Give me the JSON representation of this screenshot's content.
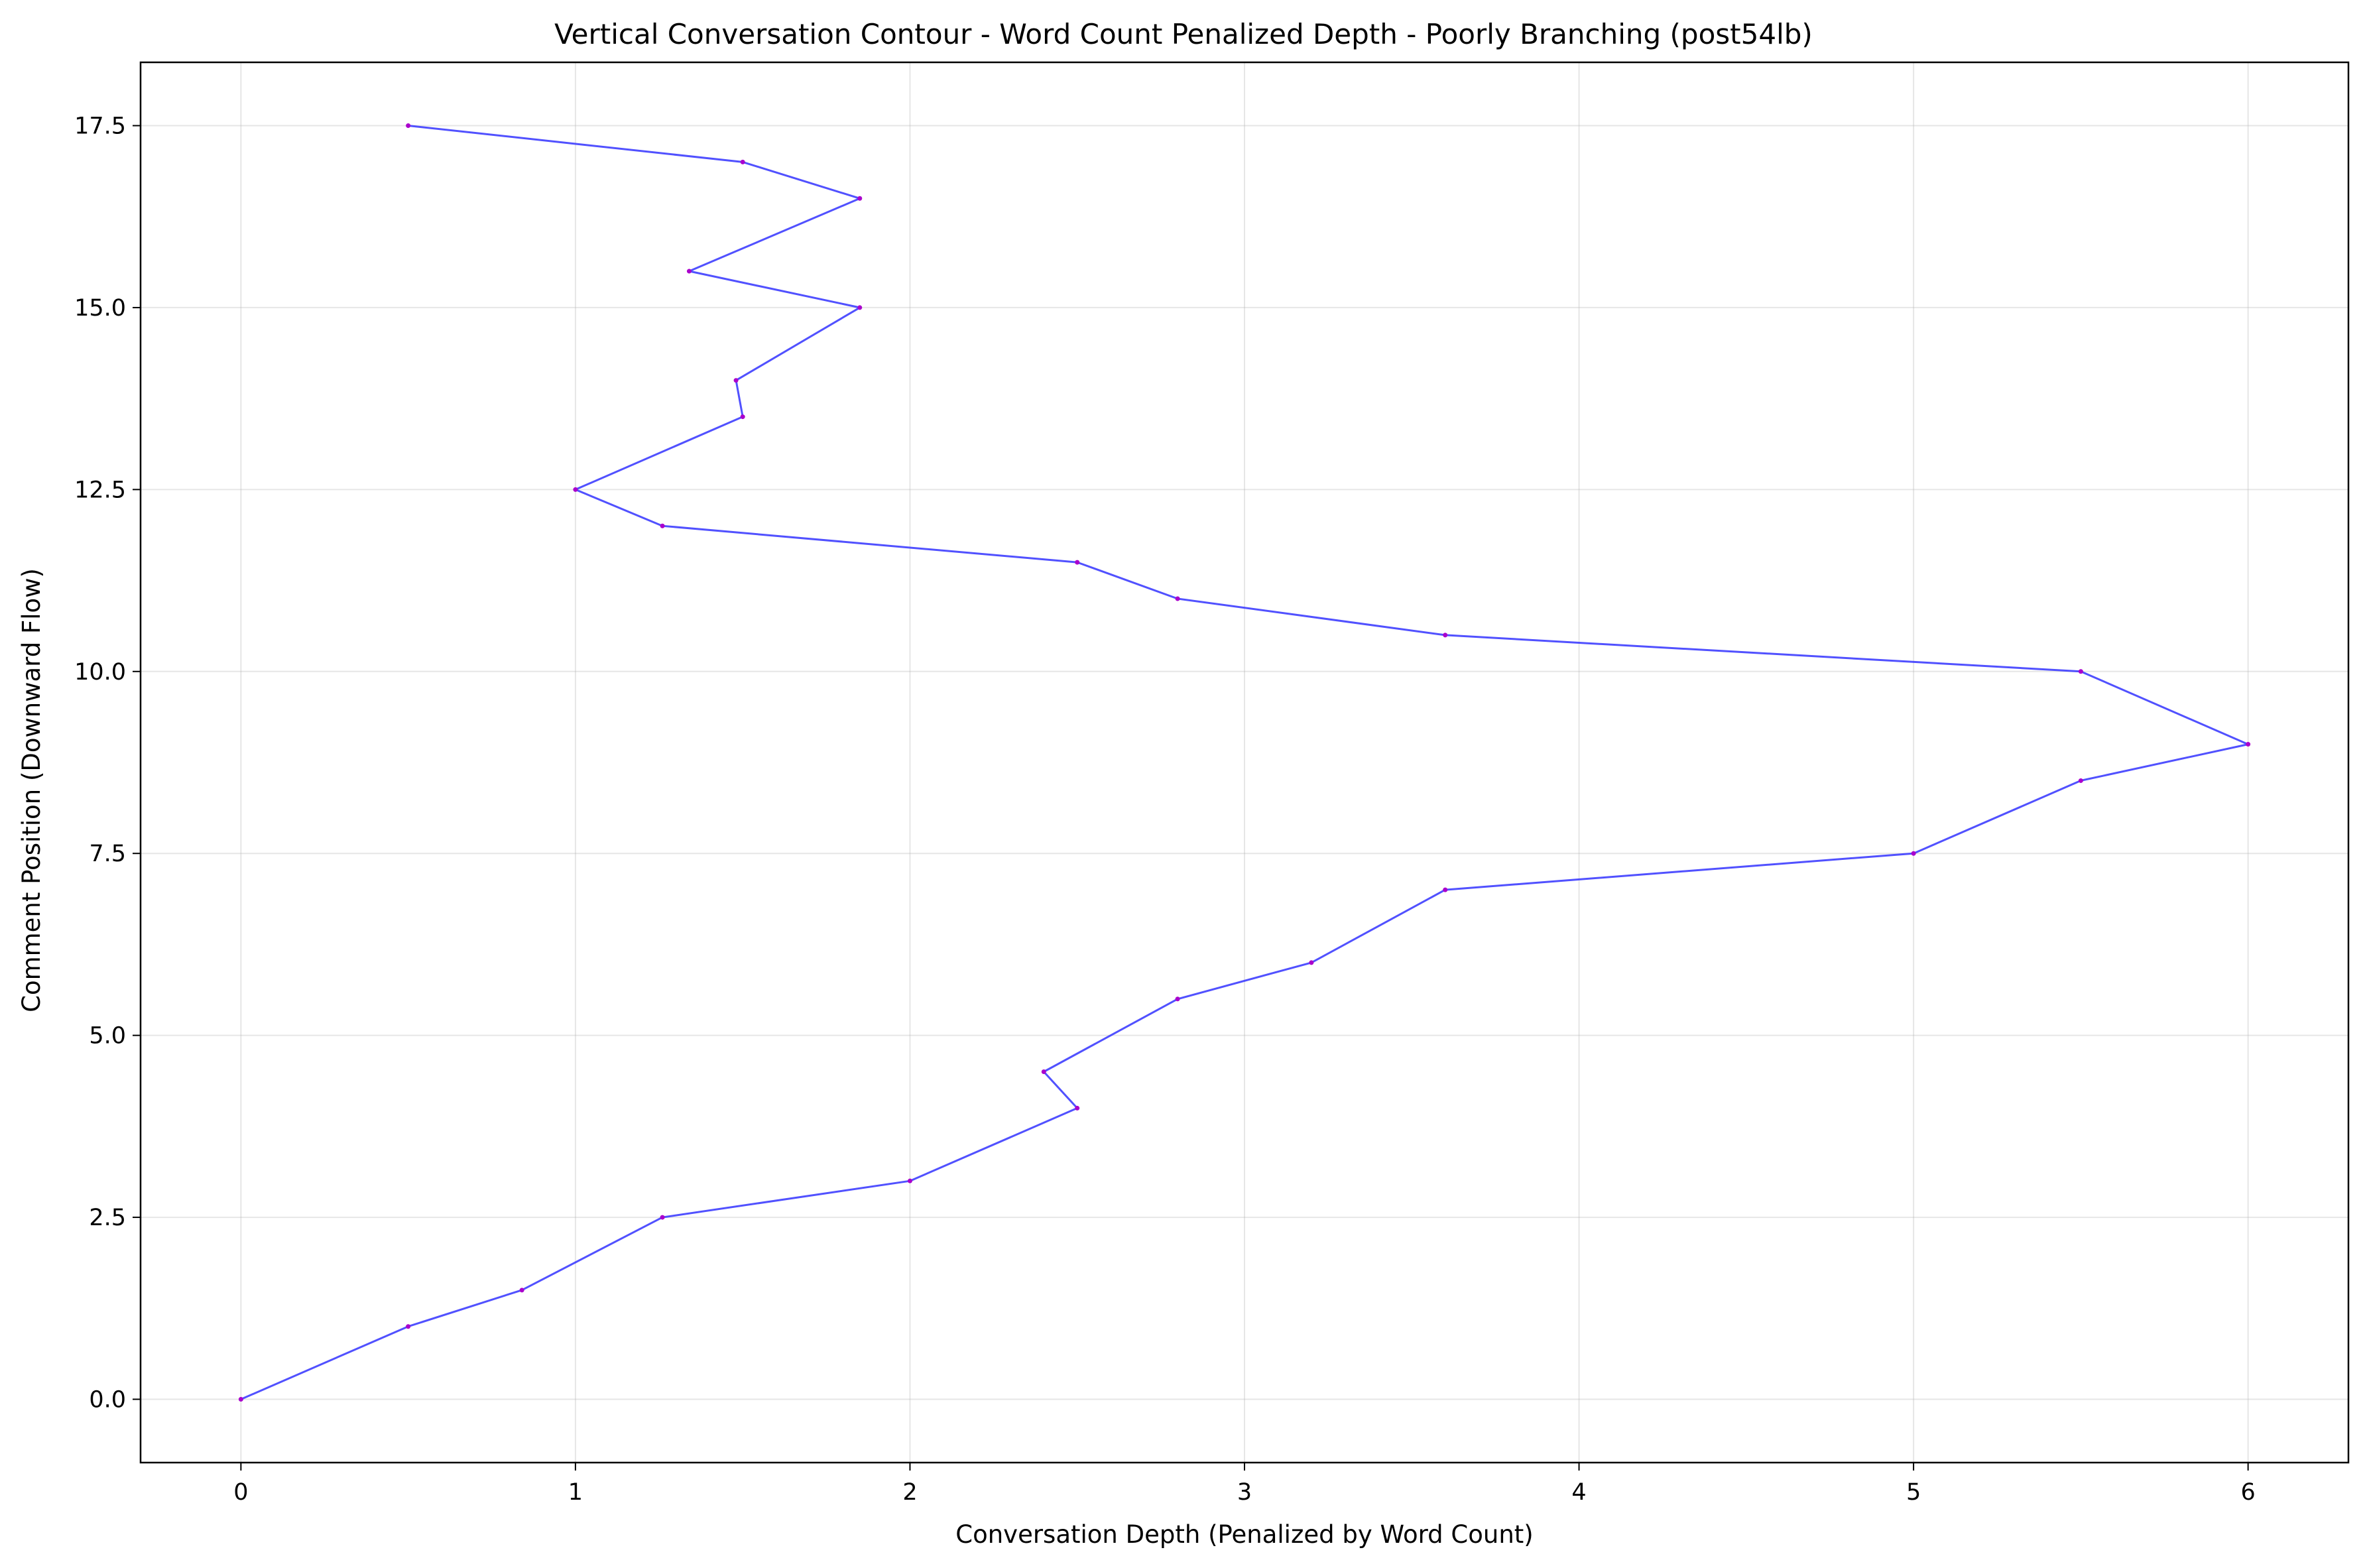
{
  "chart_data": {
    "type": "line",
    "title": "Vertical Conversation Contour - Word Count Penalized Depth - Poorly Branching (post54lb)",
    "xlabel": "Conversation Depth (Penalized by Word Count)",
    "ylabel": "Comment Position (Downward Flow)",
    "xlim": [
      -0.3,
      6.3
    ],
    "ylim": [
      -0.87,
      18.37
    ],
    "x_ticks": [
      0,
      1,
      2,
      3,
      4,
      5,
      6
    ],
    "x_tick_labels": [
      "0",
      "1",
      "2",
      "3",
      "4",
      "5",
      "6"
    ],
    "y_ticks": [
      0.0,
      2.5,
      5.0,
      7.5,
      10.0,
      12.5,
      15.0,
      17.5
    ],
    "y_tick_labels": [
      "0.0",
      "2.5",
      "5.0",
      "7.5",
      "10.0",
      "12.5",
      "15.0",
      "17.5"
    ],
    "grid": true,
    "line_color": "#3333ff",
    "marker_color": "#aa00cc",
    "series": [
      {
        "points": [
          {
            "x": 0.0,
            "y": 0.0
          },
          {
            "x": 0.5,
            "y": 1.0
          },
          {
            "x": 0.84,
            "y": 1.5
          },
          {
            "x": 1.26,
            "y": 2.5
          },
          {
            "x": 2.0,
            "y": 3.0
          },
          {
            "x": 2.5,
            "y": 4.0
          },
          {
            "x": 2.4,
            "y": 4.5
          },
          {
            "x": 2.8,
            "y": 5.5
          },
          {
            "x": 3.2,
            "y": 6.0
          },
          {
            "x": 3.6,
            "y": 7.0
          },
          {
            "x": 5.0,
            "y": 7.5
          },
          {
            "x": 5.5,
            "y": 8.5
          },
          {
            "x": 6.0,
            "y": 9.0
          },
          {
            "x": 5.5,
            "y": 10.0
          },
          {
            "x": 3.6,
            "y": 10.5
          },
          {
            "x": 2.8,
            "y": 11.0
          },
          {
            "x": 2.5,
            "y": 11.5
          },
          {
            "x": 1.26,
            "y": 12.0
          },
          {
            "x": 1.0,
            "y": 12.5
          },
          {
            "x": 1.5,
            "y": 13.5
          },
          {
            "x": 1.48,
            "y": 14.0
          },
          {
            "x": 1.85,
            "y": 15.0
          },
          {
            "x": 1.34,
            "y": 15.5
          },
          {
            "x": 1.85,
            "y": 16.5
          },
          {
            "x": 1.5,
            "y": 17.0
          },
          {
            "x": 0.5,
            "y": 17.5
          }
        ]
      }
    ]
  }
}
